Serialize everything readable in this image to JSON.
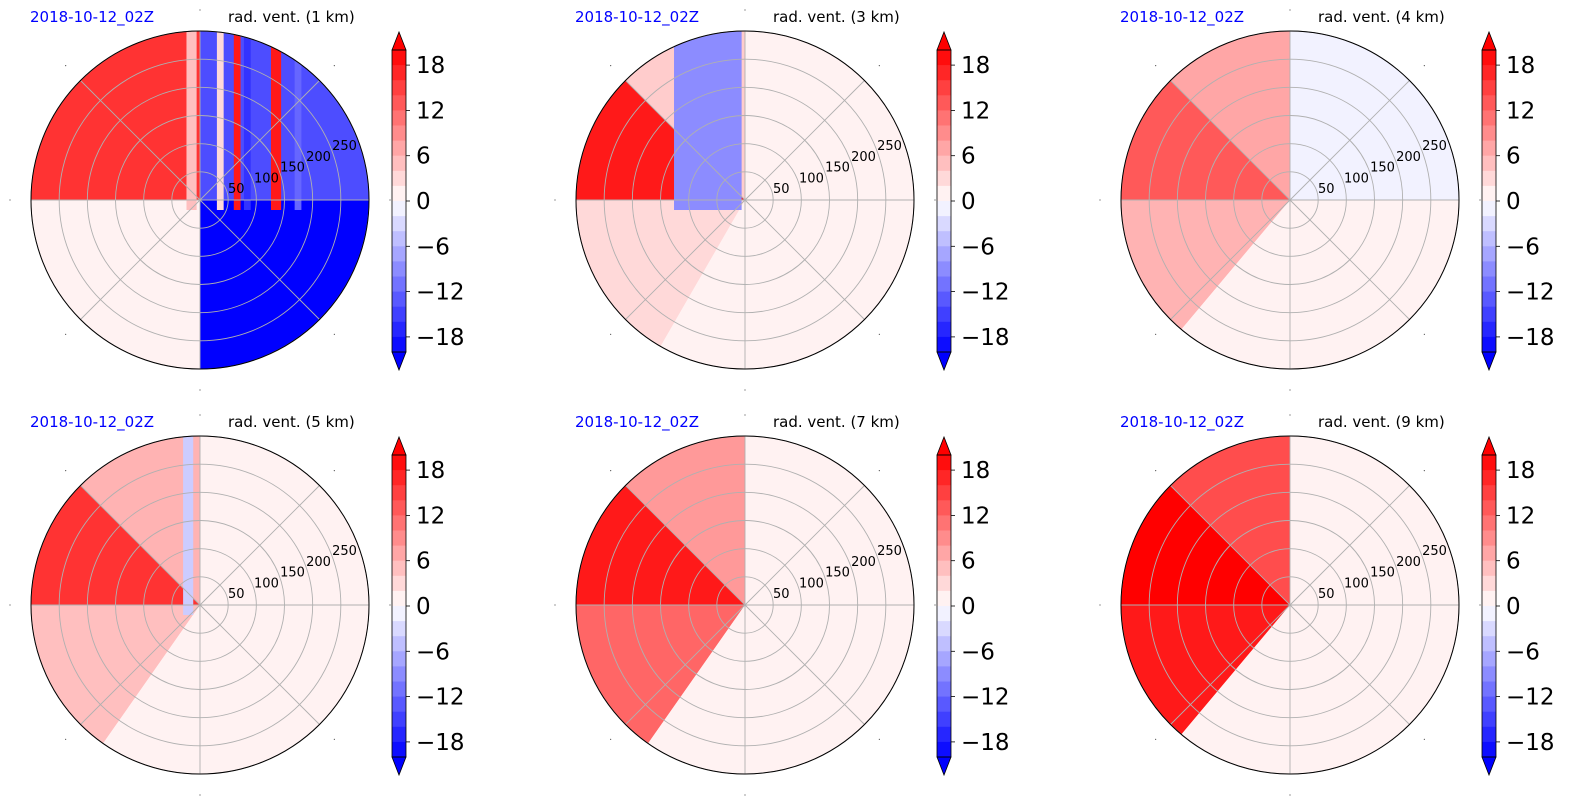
{
  "colors": {
    "date_label": "#0000ff",
    "positive": "#ff0000",
    "negative": "#0000ff",
    "grid": "#b0b0b0"
  },
  "chart_data": [
    {
      "type": "polar-contour",
      "date_label": "2018-10-12_02Z",
      "title": "rad. vent. (1 km)",
      "radial_ticks": [
        "50",
        "100",
        "150",
        "200",
        "250"
      ],
      "radial_max": 300,
      "colorbar": {
        "ticks": [
          "18",
          "12",
          "6",
          "0",
          "−6",
          "−12",
          "−18"
        ],
        "range": [
          -20,
          20
        ],
        "extend": "both"
      },
      "regions": [
        {
          "from_deg": 90,
          "to_deg": 180,
          "value": 16
        },
        {
          "from_deg": 180,
          "to_deg": 270,
          "value": 1
        },
        {
          "from_deg": 270,
          "to_deg": 315,
          "value": -20
        },
        {
          "from_deg": 315,
          "to_deg": 360,
          "value": -20
        },
        {
          "from_deg": 0,
          "to_deg": 90,
          "value": -14
        }
      ],
      "stripes_x": [
        {
          "x0": 0.46,
          "x1": 0.49,
          "value": 5
        },
        {
          "x0": 0.55,
          "x1": 0.57,
          "value": 3
        },
        {
          "x0": 0.6,
          "x1": 0.62,
          "value": 18
        },
        {
          "x0": 0.63,
          "x1": 0.65,
          "value": -16
        },
        {
          "x0": 0.71,
          "x1": 0.74,
          "value": 18
        },
        {
          "x0": 0.78,
          "x1": 0.8,
          "value": -12
        }
      ]
    },
    {
      "type": "polar-contour",
      "date_label": "2018-10-12_02Z",
      "title": "rad. vent. (3 km)",
      "radial_ticks": [
        "50",
        "100",
        "150",
        "200",
        "250"
      ],
      "radial_max": 300,
      "colorbar": {
        "ticks": [
          "18",
          "12",
          "6",
          "0",
          "−6",
          "−12",
          "−18"
        ],
        "range": [
          -20,
          20
        ],
        "extend": "both"
      },
      "regions": [
        {
          "from_deg": 90,
          "to_deg": 135,
          "value": 4
        },
        {
          "from_deg": 135,
          "to_deg": 180,
          "value": 18
        },
        {
          "from_deg": 180,
          "to_deg": 240,
          "value": 3
        },
        {
          "from_deg": 240,
          "to_deg": 360,
          "value": 1
        },
        {
          "from_deg": 0,
          "to_deg": 90,
          "value": 1
        }
      ],
      "stripes_x": [
        {
          "x0": 0.29,
          "x1": 0.49,
          "value": -9
        }
      ]
    },
    {
      "type": "polar-contour",
      "date_label": "2018-10-12_02Z",
      "title": "rad. vent. (4 km)",
      "radial_ticks": [
        "50",
        "100",
        "150",
        "200",
        "250"
      ],
      "radial_max": 300,
      "colorbar": {
        "ticks": [
          "18",
          "12",
          "6",
          "0",
          "−6",
          "−12",
          "−18"
        ],
        "range": [
          -20,
          20
        ],
        "extend": "both"
      },
      "regions": [
        {
          "from_deg": 90,
          "to_deg": 135,
          "value": 7
        },
        {
          "from_deg": 135,
          "to_deg": 180,
          "value": 13
        },
        {
          "from_deg": 180,
          "to_deg": 230,
          "value": 6
        },
        {
          "from_deg": 230,
          "to_deg": 360,
          "value": 1
        },
        {
          "from_deg": 0,
          "to_deg": 90,
          "value": -1
        }
      ],
      "stripes_x": []
    },
    {
      "type": "polar-contour",
      "date_label": "2018-10-12_02Z",
      "title": "rad. vent. (5 km)",
      "radial_ticks": [
        "50",
        "100",
        "150",
        "200",
        "250"
      ],
      "radial_max": 300,
      "colorbar": {
        "ticks": [
          "18",
          "12",
          "6",
          "0",
          "−6",
          "−12",
          "−18"
        ],
        "range": [
          -20,
          20
        ],
        "extend": "both"
      },
      "regions": [
        {
          "from_deg": 90,
          "to_deg": 135,
          "value": 6
        },
        {
          "from_deg": 135,
          "to_deg": 180,
          "value": 16
        },
        {
          "from_deg": 180,
          "to_deg": 235,
          "value": 5
        },
        {
          "from_deg": 235,
          "to_deg": 360,
          "value": 1
        },
        {
          "from_deg": 0,
          "to_deg": 90,
          "value": 1
        }
      ],
      "stripes_x": [
        {
          "x0": 0.45,
          "x1": 0.48,
          "value": -4
        }
      ]
    },
    {
      "type": "polar-contour",
      "date_label": "2018-10-12_02Z",
      "title": "rad. vent. (7 km)",
      "radial_ticks": [
        "50",
        "100",
        "150",
        "200",
        "250"
      ],
      "radial_max": 300,
      "colorbar": {
        "ticks": [
          "18",
          "12",
          "6",
          "0",
          "−6",
          "−12",
          "−18"
        ],
        "range": [
          -20,
          20
        ],
        "extend": "both"
      },
      "regions": [
        {
          "from_deg": 90,
          "to_deg": 135,
          "value": 8
        },
        {
          "from_deg": 135,
          "to_deg": 180,
          "value": 18
        },
        {
          "from_deg": 180,
          "to_deg": 235,
          "value": 12
        },
        {
          "from_deg": 235,
          "to_deg": 360,
          "value": 1
        },
        {
          "from_deg": 0,
          "to_deg": 90,
          "value": 1
        }
      ],
      "stripes_x": []
    },
    {
      "type": "polar-contour",
      "date_label": "2018-10-12_02Z",
      "title": "rad. vent. (9 km)",
      "radial_ticks": [
        "50",
        "100",
        "150",
        "200",
        "250"
      ],
      "radial_max": 300,
      "colorbar": {
        "ticks": [
          "18",
          "12",
          "6",
          "0",
          "−6",
          "−12",
          "−18"
        ],
        "range": [
          -20,
          20
        ],
        "extend": "both"
      },
      "regions": [
        {
          "from_deg": 90,
          "to_deg": 135,
          "value": 14
        },
        {
          "from_deg": 135,
          "to_deg": 180,
          "value": 20
        },
        {
          "from_deg": 180,
          "to_deg": 230,
          "value": 18
        },
        {
          "from_deg": 230,
          "to_deg": 360,
          "value": 1
        },
        {
          "from_deg": 0,
          "to_deg": 90,
          "value": 1
        }
      ],
      "stripes_x": []
    }
  ]
}
